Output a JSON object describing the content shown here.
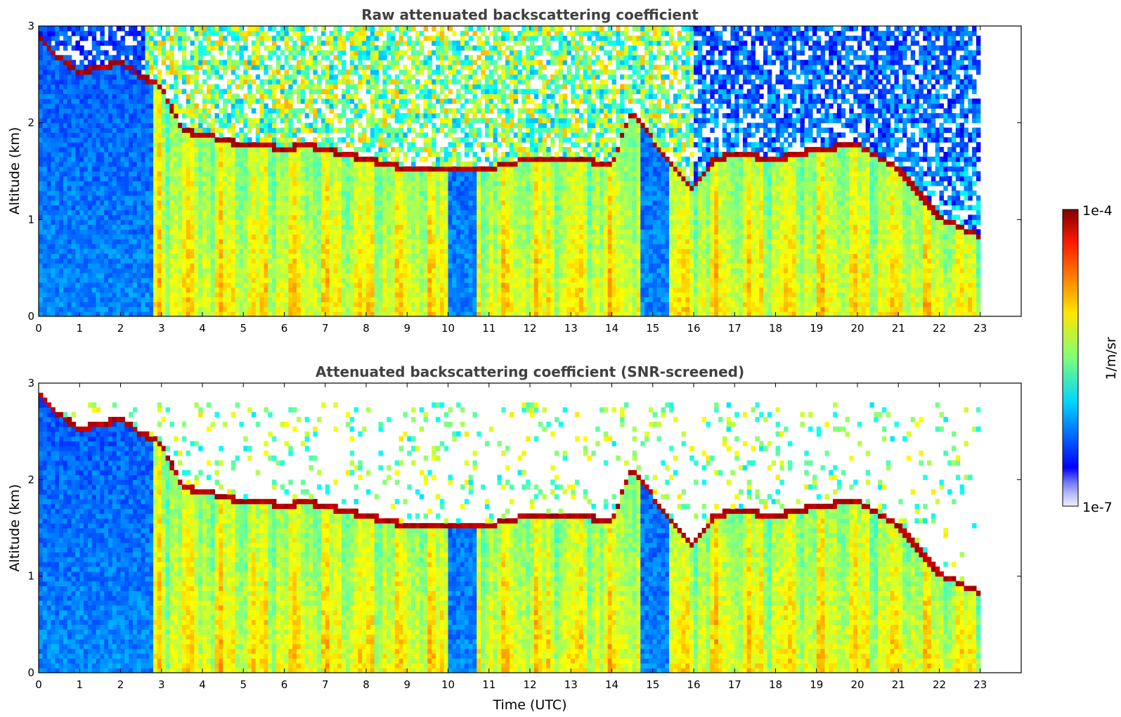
{
  "figure": {
    "colorbar": {
      "label": "1/m/sr",
      "tick_labels": [
        "1e-4",
        "1e-7"
      ],
      "scale": "log",
      "range": [
        1e-07,
        0.0001
      ],
      "colormap": "jet"
    },
    "xlabel": "Time (UTC)"
  },
  "chart_data": [
    {
      "type": "heatmap",
      "title": "Raw attenuated backscattering coefficient",
      "xlabel": "",
      "ylabel": "Altitude (km)",
      "xlim": [
        0,
        24
      ],
      "ylim": [
        0,
        3
      ],
      "xticks": [
        "0",
        "1",
        "2",
        "3",
        "4",
        "5",
        "6",
        "7",
        "8",
        "9",
        "10",
        "11",
        "12",
        "13",
        "14",
        "15",
        "16",
        "17",
        "18",
        "19",
        "20",
        "21",
        "22",
        "23"
      ],
      "yticks": [
        "0",
        "1",
        "2",
        "3"
      ],
      "data_end_time": 23,
      "colorscale": "log",
      "value_range": [
        1e-07,
        0.0001
      ],
      "boundary_layer_top_km": [
        [
          0.0,
          2.85
        ],
        [
          0.5,
          2.65
        ],
        [
          1.0,
          2.5
        ],
        [
          1.5,
          2.55
        ],
        [
          2.0,
          2.6
        ],
        [
          2.5,
          2.45
        ],
        [
          3.0,
          2.35
        ],
        [
          3.5,
          1.9
        ],
        [
          4.0,
          1.85
        ],
        [
          4.5,
          1.8
        ],
        [
          5.0,
          1.75
        ],
        [
          5.5,
          1.75
        ],
        [
          6.0,
          1.7
        ],
        [
          6.5,
          1.75
        ],
        [
          7.0,
          1.7
        ],
        [
          7.5,
          1.65
        ],
        [
          8.0,
          1.6
        ],
        [
          8.5,
          1.55
        ],
        [
          9.0,
          1.5
        ],
        [
          10.0,
          1.5
        ],
        [
          11.0,
          1.5
        ],
        [
          12.0,
          1.6
        ],
        [
          13.0,
          1.6
        ],
        [
          14.0,
          1.55
        ],
        [
          14.5,
          2.1
        ],
        [
          15.0,
          1.8
        ],
        [
          15.5,
          1.5
        ],
        [
          16.0,
          1.3
        ],
        [
          16.5,
          1.6
        ],
        [
          17.0,
          1.65
        ],
        [
          18.0,
          1.6
        ],
        [
          19.0,
          1.7
        ],
        [
          20.0,
          1.75
        ],
        [
          21.0,
          1.5
        ],
        [
          22.0,
          1.0
        ],
        [
          23.0,
          0.8
        ]
      ]
    },
    {
      "type": "heatmap",
      "title": "Attenuated backscattering coefficient (SNR-screened)",
      "xlabel": "Time (UTC)",
      "ylabel": "Altitude (km)",
      "xlim": [
        0,
        24
      ],
      "ylim": [
        0,
        3
      ],
      "xticks": [
        "0",
        "1",
        "2",
        "3",
        "4",
        "5",
        "6",
        "7",
        "8",
        "9",
        "10",
        "11",
        "12",
        "13",
        "14",
        "15",
        "16",
        "17",
        "18",
        "19",
        "20",
        "21",
        "22",
        "23"
      ],
      "yticks": [
        "0",
        "1",
        "2",
        "3"
      ],
      "data_end_time": 23,
      "colorscale": "log",
      "value_range": [
        1e-07,
        0.0001
      ]
    }
  ]
}
